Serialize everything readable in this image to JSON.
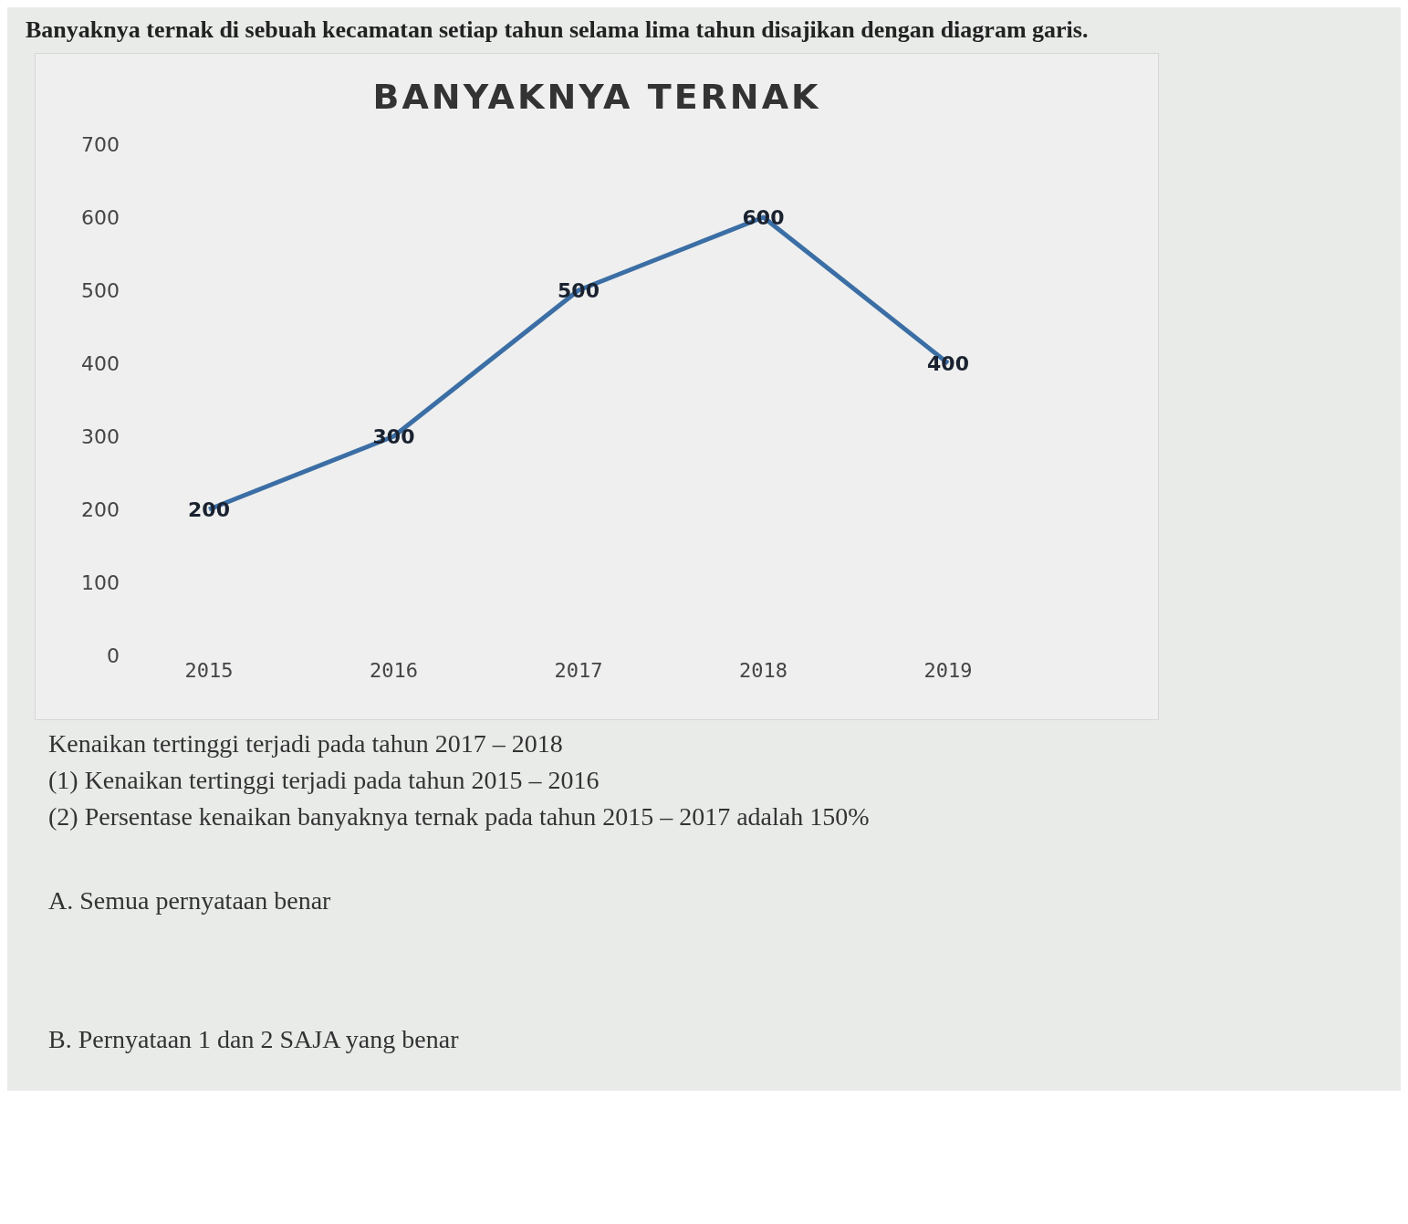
{
  "chart_data": {
    "type": "line",
    "subtitle": "Banyaknya ternak di sebuah kecamatan setiap tahun selama lima tahun disajikan dengan diagram garis.",
    "title": "BANYAKNYA TERNAK",
    "categories": [
      "2015",
      "2016",
      "2017",
      "2018",
      "2019"
    ],
    "series": [
      {
        "color": "#3b6ea5",
        "values": [
          200,
          300,
          500,
          600,
          400
        ]
      }
    ],
    "ylim": [
      0,
      700
    ],
    "yticks": [
      0,
      100,
      200,
      300,
      400,
      500,
      600,
      700
    ],
    "grid": false,
    "legend": false,
    "marker": "none",
    "line_style": "solid",
    "data_labels": true,
    "annotations": [
      "Kenaikan tertinggi terjadi pada tahun 2017 – 2018",
      "(1) Kenaikan tertinggi terjadi pada tahun 2015 – 2016",
      "(2) Persentase kenaikan banyaknya ternak pada tahun 2015 – 2017 adalah 150%",
      "A. Semua pernyataan benar",
      "B. Pernyataan 1 dan 2 SAJA yang benar"
    ]
  }
}
